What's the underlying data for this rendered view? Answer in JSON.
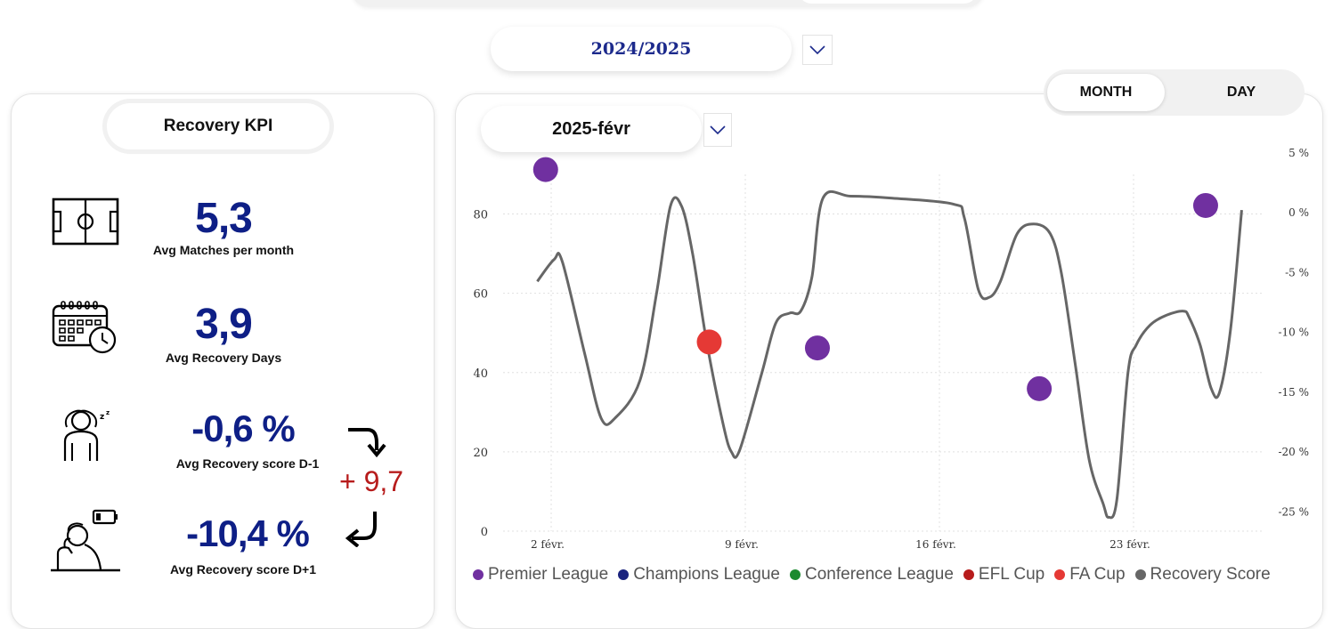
{
  "season": "2024/2025",
  "kpi": {
    "title": "Recovery KPI",
    "matches": {
      "value": "5,3",
      "label": "Avg Matches per month",
      "icon": "football-pitch-icon"
    },
    "recovery_days": {
      "value": "3,9",
      "label": "Avg Recovery Days",
      "icon": "calendar-clock-icon"
    },
    "score_before": {
      "value": "-0,6 %",
      "label": "Avg Recovery score D-1",
      "icon": "sleeping-person-icon"
    },
    "score_after": {
      "value": "-10,4 %",
      "label": "Avg Recovery score D+1",
      "icon": "tired-person-low-battery-icon"
    },
    "difference": "+ 9,7"
  },
  "toggle": {
    "month": "MONTH",
    "day": "DAY",
    "active": "MONTH"
  },
  "month_select": "2025-févr",
  "colors": {
    "premier_league": "#7030a0",
    "champions_league": "#1a237e",
    "conference_league": "#1b8a2e",
    "efl_cup": "#b71c1c",
    "fa_cup": "#e53935",
    "recovery_score": "#666666",
    "kpi_value": "#0e1f86"
  },
  "legend": [
    {
      "name": "Premier League",
      "color": "#7030a0"
    },
    {
      "name": "Champions League",
      "color": "#1a237e"
    },
    {
      "name": "Conference League",
      "color": "#1b8a2e"
    },
    {
      "name": "EFL Cup",
      "color": "#b71c1c"
    },
    {
      "name": "FA Cup",
      "color": "#e53935"
    },
    {
      "name": "Recovery Score",
      "color": "#666666"
    }
  ],
  "chart_data": {
    "type": "line",
    "x_ticks": [
      {
        "label": "2 févr.",
        "day": 2
      },
      {
        "label": "9 févr.",
        "day": 9
      },
      {
        "label": "16 févr.",
        "day": 16
      },
      {
        "label": "23 févr.",
        "day": 23
      }
    ],
    "y_left": {
      "ticks": [
        "0",
        "20",
        "40",
        "60",
        "80"
      ],
      "range": [
        0,
        90
      ]
    },
    "y_right": {
      "ticks": [
        "5 %",
        "0 %",
        "-5 %",
        "-10 %",
        "-15 %",
        "-20 %",
        "-25 %"
      ],
      "range": [
        -26.3,
        3.5
      ]
    },
    "grid": true,
    "legend_position": "bottom",
    "series": [
      {
        "name": "Recovery Score",
        "axis": "left",
        "points": [
          [
            1.5,
            63
          ],
          [
            2.1,
            68.5
          ],
          [
            2.4,
            68
          ],
          [
            3.2,
            45
          ],
          [
            3.8,
            28.5
          ],
          [
            4.3,
            28.5
          ],
          [
            5.2,
            38
          ],
          [
            5.8,
            60
          ],
          [
            6.3,
            82
          ],
          [
            6.7,
            82
          ],
          [
            7.1,
            70
          ],
          [
            7.6,
            48
          ],
          [
            8.2,
            27
          ],
          [
            8.5,
            20
          ],
          [
            8.8,
            20.5
          ],
          [
            9.6,
            40
          ],
          [
            10.1,
            52.5
          ],
          [
            10.6,
            55
          ],
          [
            11.0,
            55.5
          ],
          [
            11.4,
            64
          ],
          [
            11.8,
            84
          ],
          [
            12.8,
            84.5
          ],
          [
            14.3,
            84
          ],
          [
            16.5,
            82.5
          ],
          [
            16.9,
            79
          ],
          [
            17.4,
            61
          ],
          [
            17.8,
            59
          ],
          [
            18.2,
            63
          ],
          [
            18.8,
            75
          ],
          [
            19.4,
            77.5
          ],
          [
            20.0,
            75
          ],
          [
            20.4,
            65
          ],
          [
            20.9,
            42
          ],
          [
            21.4,
            18
          ],
          [
            21.9,
            7
          ],
          [
            22.1,
            3.5
          ],
          [
            22.4,
            8
          ],
          [
            22.8,
            40
          ],
          [
            23.1,
            47
          ],
          [
            23.6,
            52
          ],
          [
            24.2,
            54.5
          ],
          [
            24.8,
            55.5
          ],
          [
            25.0,
            54
          ],
          [
            25.4,
            47
          ],
          [
            25.8,
            36
          ],
          [
            26.1,
            35
          ],
          [
            26.5,
            51
          ],
          [
            26.9,
            81
          ]
        ]
      },
      {
        "name": "Premier League",
        "axis": "right",
        "points": [
          [
            1.8,
            3.9
          ],
          [
            11.6,
            -11
          ],
          [
            19.6,
            -14.4
          ],
          [
            25.6,
            0.9
          ]
        ]
      },
      {
        "name": "FA Cup",
        "axis": "right",
        "points": [
          [
            7.7,
            -10.5
          ]
        ]
      }
    ]
  }
}
